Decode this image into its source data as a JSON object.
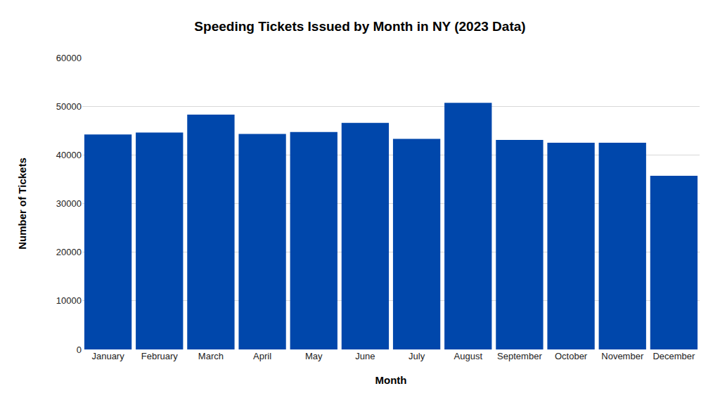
{
  "chart_data": {
    "type": "bar",
    "title": "Speeding Tickets Issued by Month in NY (2023 Data)",
    "x_label": "Month",
    "y_label": "Number of Tickets",
    "categories": [
      "January",
      "February",
      "March",
      "April",
      "May",
      "June",
      "July",
      "August",
      "September",
      "October",
      "November",
      "December"
    ],
    "values": [
      44200,
      44600,
      48300,
      44300,
      44700,
      46600,
      43300,
      50700,
      43100,
      42500,
      42500,
      35700
    ],
    "color": "#0047ab",
    "ylim": [
      0,
      60000
    ],
    "yticks": [
      0,
      10000,
      20000,
      30000,
      40000,
      50000,
      60000
    ],
    "grid": true
  }
}
